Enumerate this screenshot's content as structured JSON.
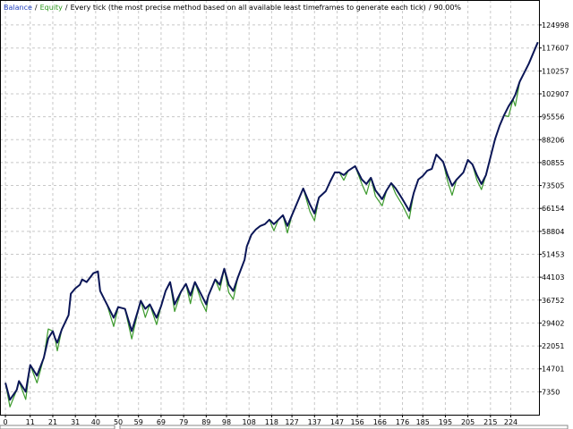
{
  "chart_data": {
    "type": "line",
    "title_parts": [
      "Every tick (the most precise method based on all available least timeframes to generate each tick)",
      "90.00%"
    ],
    "separator": "/",
    "x": [
      0,
      2,
      5,
      6,
      9,
      11,
      14,
      17,
      19,
      21,
      22,
      23,
      25,
      28,
      29,
      31,
      33,
      34,
      36,
      39,
      41,
      42,
      45,
      48,
      50,
      53,
      56,
      59,
      60,
      62,
      64,
      67,
      69,
      71,
      73,
      75,
      78,
      80,
      82,
      84,
      87,
      89,
      90,
      93,
      95,
      97,
      99,
      101,
      103,
      106,
      107,
      109,
      111,
      113,
      115,
      117,
      119,
      121,
      123,
      125,
      127,
      130,
      132,
      135,
      137,
      139,
      142,
      144,
      146,
      148,
      150,
      152,
      155,
      158,
      160,
      162,
      164,
      167,
      169,
      171,
      173,
      176,
      179,
      181,
      183,
      185,
      187,
      189,
      191,
      194,
      196,
      198,
      200,
      203,
      205,
      207,
      209,
      211,
      213,
      215,
      217,
      219,
      221,
      223,
      225,
      226,
      228,
      230,
      232,
      234,
      236
    ],
    "series": [
      {
        "name": "Balance",
        "color": "#0b1657",
        "label_color": "#1f3fbf",
        "values": [
          10210,
          4776,
          7922,
          10782,
          7350,
          15930,
          12498,
          18218,
          24510,
          26798,
          24510,
          23080,
          27370,
          31946,
          38810,
          40526,
          41670,
          43386,
          42528,
          45388,
          45960,
          39668,
          35378,
          31088,
          34520,
          33948,
          26798,
          33948,
          36522,
          33948,
          35378,
          31088,
          34806,
          39668,
          42528,
          35378,
          39668,
          41956,
          38238,
          42528,
          38238,
          35378,
          38238,
          43386,
          41670,
          46818,
          41670,
          39668,
          43958,
          49678,
          53968,
          57686,
          59402,
          60546,
          61118,
          62548,
          61118,
          62548,
          63978,
          60546,
          63978,
          69126,
          72558,
          67410,
          64550,
          69698,
          71700,
          74846,
          77706,
          77706,
          76848,
          78278,
          79708,
          75418,
          73988,
          75990,
          71986,
          69126,
          71986,
          74274,
          72558,
          69126,
          65408,
          71128,
          75418,
          76562,
          78278,
          78850,
          83426,
          81138,
          76848,
          73416,
          75418,
          77706,
          81710,
          80280,
          76848,
          73988,
          76848,
          82568,
          88288,
          92578,
          96010,
          98870,
          101158,
          102588,
          106878,
          109738,
          112598,
          116030,
          119462
        ]
      },
      {
        "name": "Equity",
        "color": "#3c9a2c",
        "label_color": "#2e9a1e",
        "values": [
          10210,
          2500,
          7922,
          10782,
          4900,
          15930,
          10200,
          18218,
          27500,
          26798,
          24510,
          20500,
          27370,
          31946,
          38810,
          40526,
          41670,
          43386,
          42528,
          45388,
          45960,
          39668,
          35378,
          28300,
          34520,
          33948,
          24300,
          33948,
          36522,
          31200,
          35378,
          28900,
          34806,
          39668,
          42528,
          33100,
          39668,
          41956,
          35600,
          42528,
          36100,
          33100,
          38238,
          43386,
          39800,
          46818,
          39200,
          37000,
          43958,
          49678,
          53968,
          57686,
          59402,
          60546,
          61118,
          62548,
          59000,
          62548,
          63978,
          58300,
          63978,
          69126,
          72558,
          65100,
          62200,
          69698,
          71700,
          74846,
          77706,
          77706,
          75200,
          78278,
          79708,
          74000,
          70700,
          75990,
          70100,
          67000,
          71986,
          74274,
          70800,
          67200,
          62800,
          71128,
          75418,
          76562,
          78278,
          78850,
          83426,
          81138,
          74900,
          70400,
          75418,
          77706,
          81710,
          80280,
          75200,
          72200,
          76848,
          82568,
          88288,
          92578,
          96010,
          95600,
          101158,
          99000,
          106878,
          109738,
          112598,
          116030,
          119462
        ]
      }
    ],
    "xlim": [
      -2.4,
      236.5
    ],
    "ylim": [
      0,
      133000
    ],
    "xticks": [
      0,
      11,
      21,
      31,
      40,
      50,
      59,
      69,
      79,
      89,
      98,
      108,
      118,
      127,
      137,
      147,
      156,
      166,
      176,
      185,
      195,
      205,
      215,
      224
    ],
    "yticks": [
      7350,
      14701,
      22051,
      29402,
      36752,
      44103,
      51453,
      58804,
      66154,
      73505,
      80855,
      88206,
      95556,
      102907,
      110257,
      117607,
      124998
    ],
    "grid": true
  }
}
